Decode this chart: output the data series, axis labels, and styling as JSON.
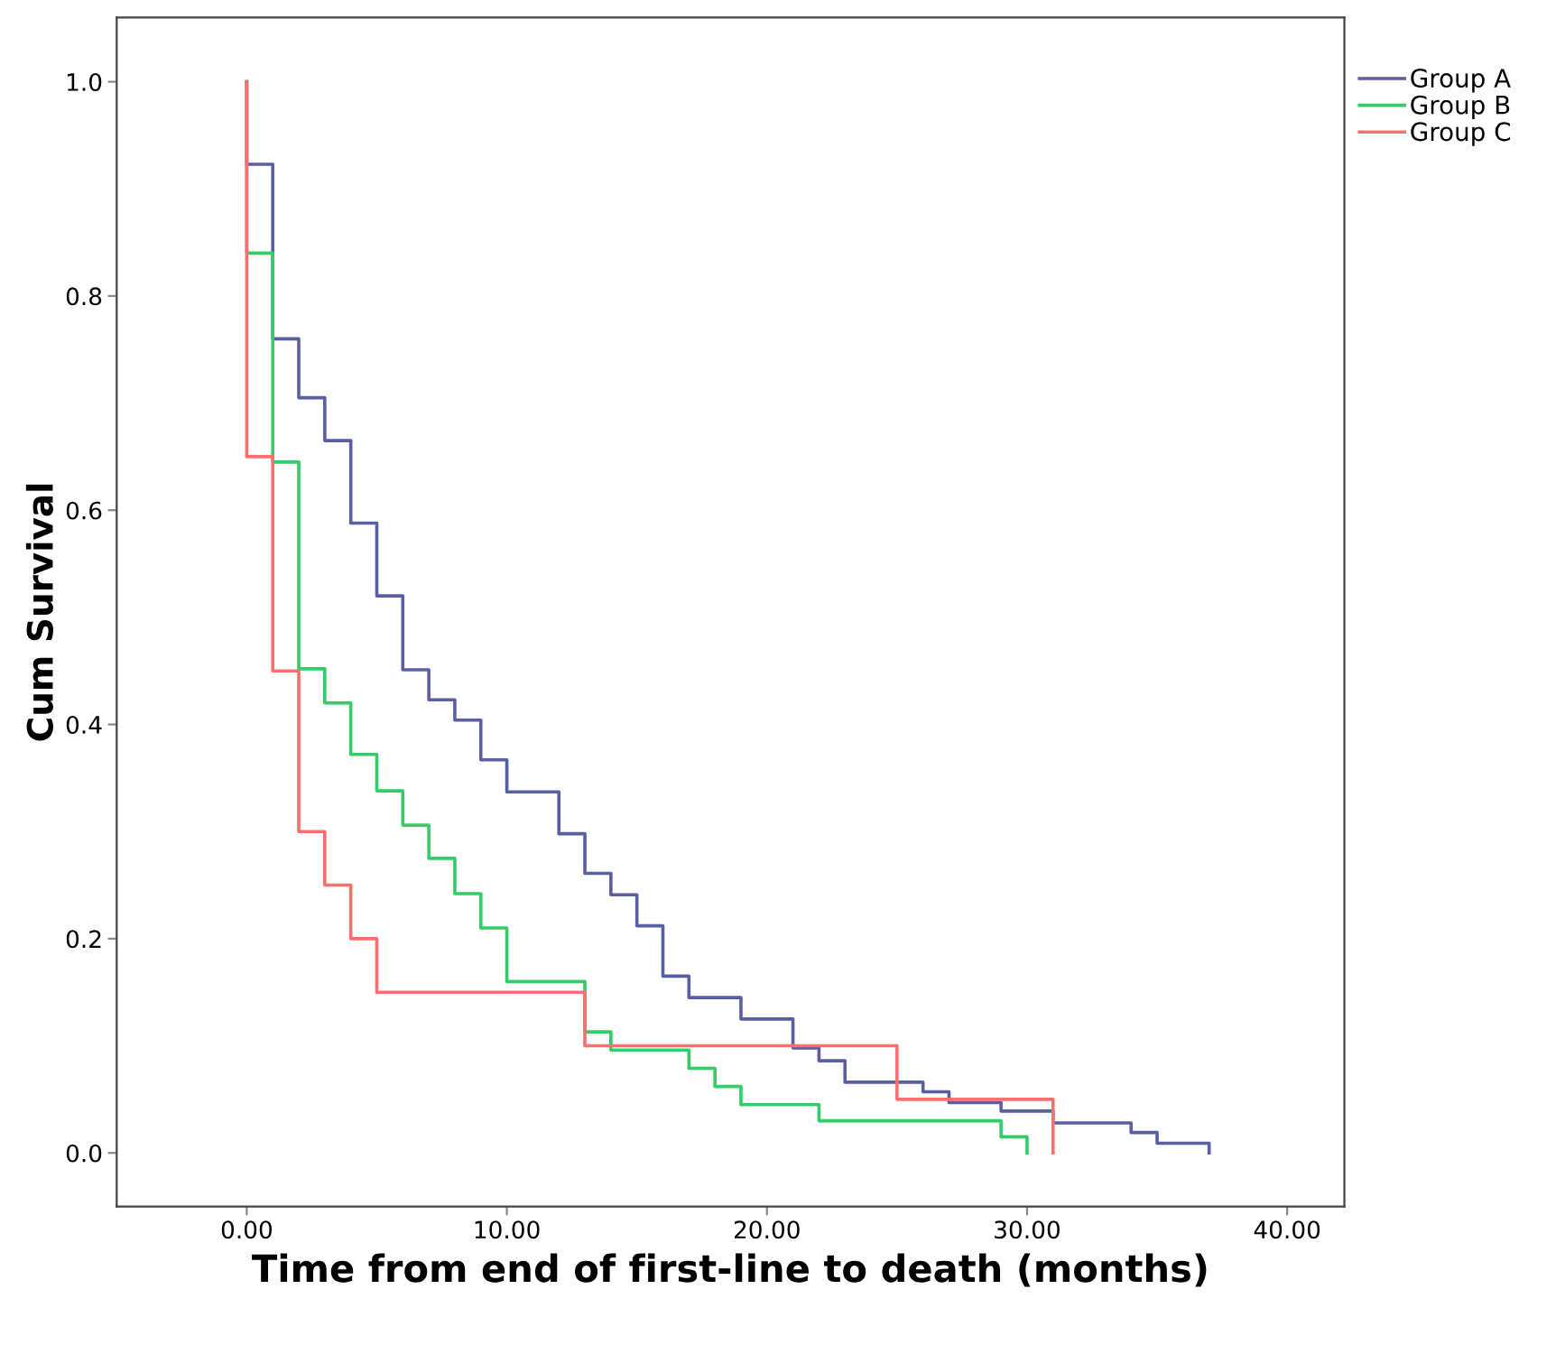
{
  "chart_data": {
    "type": "step",
    "xlabel": "Time from end of first-line to death (months)",
    "ylabel": "Cum Survival",
    "series": [
      {
        "name": "Group A",
        "color": "#5a5fa3",
        "x": [
          0,
          0,
          1,
          2,
          3,
          4,
          5,
          6,
          7,
          8,
          9,
          10,
          12,
          13,
          14,
          15,
          16,
          17,
          19,
          21,
          22,
          23,
          26,
          27,
          29,
          31,
          34,
          35,
          37
        ],
        "values": [
          1.0,
          0.923,
          0.76,
          0.705,
          0.665,
          0.588,
          0.52,
          0.451,
          0.423,
          0.404,
          0.367,
          0.337,
          0.298,
          0.261,
          0.241,
          0.212,
          0.165,
          0.145,
          0.125,
          0.098,
          0.086,
          0.066,
          0.057,
          0.047,
          0.039,
          0.028,
          0.019,
          0.009,
          0.0
        ]
      },
      {
        "name": "Group B",
        "color": "#33cc66",
        "x": [
          0,
          0,
          1,
          2,
          3,
          4,
          5,
          6,
          7,
          8,
          9,
          10,
          13,
          14,
          17,
          18,
          19,
          22,
          29,
          30
        ],
        "values": [
          1.0,
          0.84,
          0.645,
          0.452,
          0.42,
          0.372,
          0.338,
          0.306,
          0.275,
          0.242,
          0.21,
          0.16,
          0.113,
          0.096,
          0.079,
          0.062,
          0.045,
          0.03,
          0.015,
          0.0
        ]
      },
      {
        "name": "Group C",
        "color": "#ff6e6e",
        "x": [
          0,
          0,
          1,
          2,
          3,
          4,
          5,
          13,
          25,
          31
        ],
        "values": [
          1.0,
          0.65,
          0.45,
          0.3,
          0.25,
          0.2,
          0.15,
          0.1,
          0.05,
          0.0
        ]
      }
    ],
    "xlim": [
      -5,
      42.2
    ],
    "ylim": [
      -0.05,
      1.06
    ],
    "xticks": [
      {
        "value": 0,
        "label": "0.00"
      },
      {
        "value": 10,
        "label": "10.00"
      },
      {
        "value": 20,
        "label": "20.00"
      },
      {
        "value": 30,
        "label": "30.00"
      },
      {
        "value": 40,
        "label": "40.00"
      }
    ],
    "yticks": [
      {
        "value": 0,
        "label": "0.0"
      },
      {
        "value": 0.2,
        "label": "0.2"
      },
      {
        "value": 0.4,
        "label": "0.4"
      },
      {
        "value": 0.6,
        "label": "0.6"
      },
      {
        "value": 0.8,
        "label": "0.8"
      },
      {
        "value": 1.0,
        "label": "1.0"
      }
    ],
    "grid": false,
    "legend": "top right"
  }
}
